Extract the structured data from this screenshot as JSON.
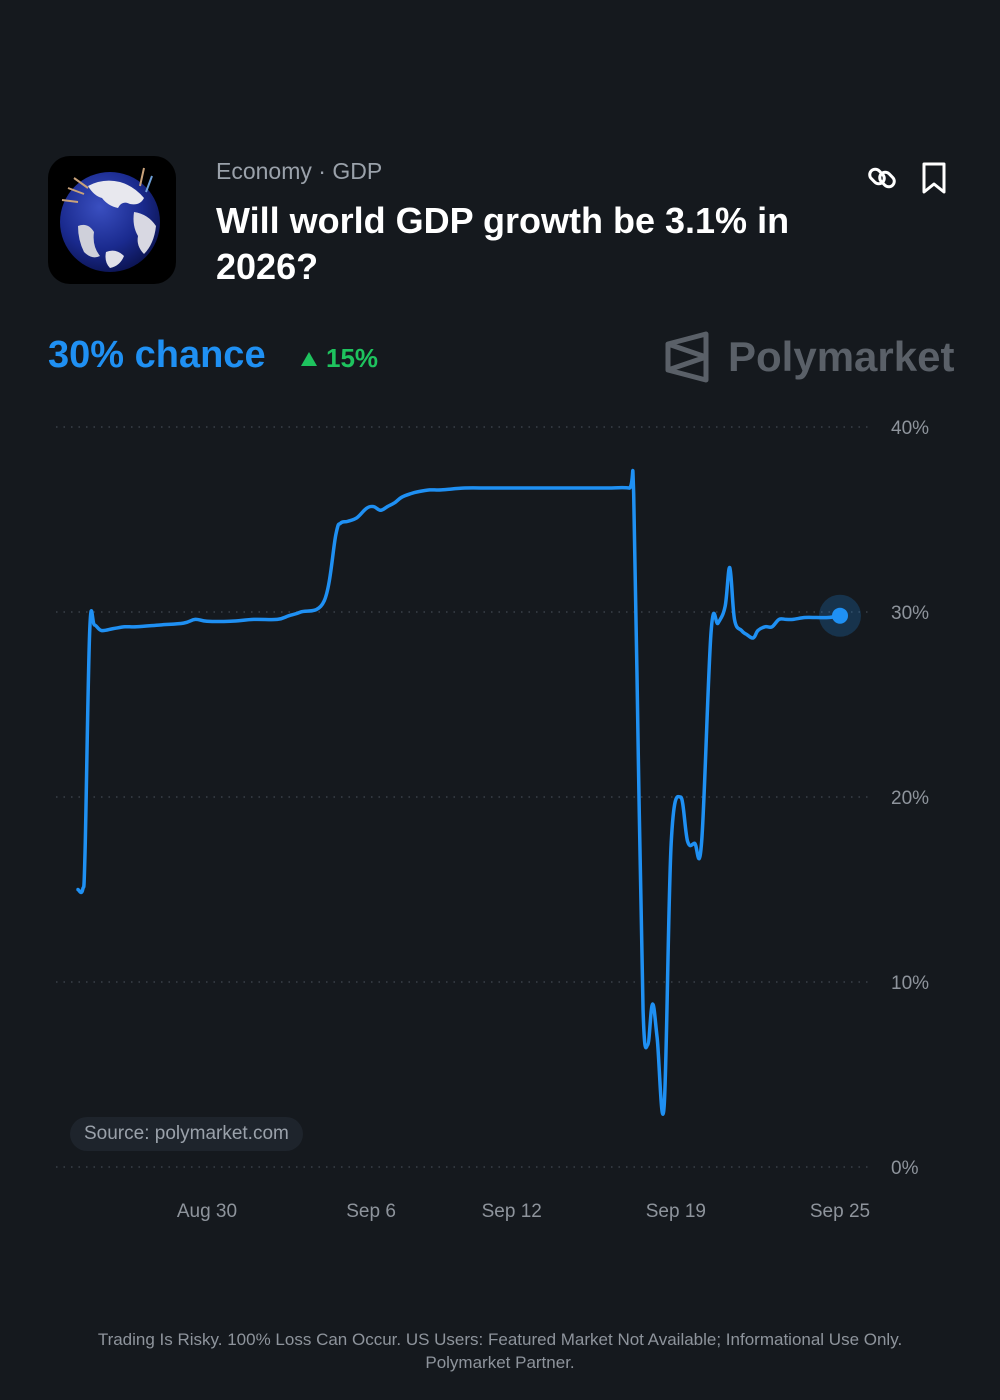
{
  "header": {
    "category": "Economy · GDP",
    "question": "Will world GDP growth be 3.1% in 2026?"
  },
  "icons": {
    "thumbnail": "globe-image",
    "link": "link-icon",
    "bookmark": "bookmark-icon",
    "brand": "polymarket-logo-icon",
    "trend": "triangle-up-icon"
  },
  "summary": {
    "chance_label": "30% chance",
    "change_label": "15%",
    "brand": "Polymarket"
  },
  "colors": {
    "accent": "#1f90f3",
    "positive": "#1ec35e",
    "background": "#15191e"
  },
  "source_label": "Source: polymarket.com",
  "footer": {
    "line1": "Trading Is Risky. 100% Loss Can Occur. US Users: Featured Market Not Available; Informational Use Only.",
    "line2": "Polymarket Partner."
  },
  "chart_data": {
    "type": "line",
    "title": "",
    "xlabel": "",
    "ylabel": "",
    "ylim": [
      0,
      40
    ],
    "y_ticks": [
      0,
      10,
      20,
      30,
      40
    ],
    "y_tick_labels": [
      "0%",
      "10%",
      "20%",
      "30%",
      "40%"
    ],
    "x_tick_labels": [
      "Aug 30",
      "Sep 6",
      "Sep 12",
      "Sep 19",
      "Sep 25"
    ],
    "x_tick_positions": [
      4,
      11,
      17,
      24,
      31
    ],
    "xlim": [
      -1.5,
      31
    ],
    "grid": true,
    "series": [
      {
        "color": "#1f90f3",
        "x": [
          -1.5,
          -1.3,
          -1.2,
          -1.0,
          -0.8,
          -0.5,
          0,
          0.5,
          1,
          2,
          3,
          3.5,
          4,
          5,
          6,
          7,
          7.5,
          8,
          9,
          9.5,
          9.7,
          10.0,
          10.4,
          10.8,
          11.1,
          11.4,
          11.7,
          12.0,
          12.3,
          12.7,
          13.0,
          13.5,
          14,
          15,
          16,
          17,
          18,
          19,
          20,
          21,
          22,
          22.2,
          22.4,
          22.6,
          22.8,
          23.0,
          23.2,
          23.5,
          23.8,
          24.2,
          24.5,
          24.8,
          25.1,
          25.5,
          25.8,
          26.1,
          26.3,
          26.5,
          26.8,
          27.0,
          27.3,
          27.5,
          27.8,
          28.1,
          28.4,
          28.7,
          29.0,
          29.5,
          30,
          30.5,
          31
        ],
        "values": [
          15.0,
          15.0,
          17,
          29.0,
          29.3,
          29.0,
          29.1,
          29.2,
          29.2,
          29.3,
          29.4,
          29.6,
          29.5,
          29.5,
          29.6,
          29.6,
          29.8,
          30.0,
          30.6,
          34.2,
          34.8,
          34.9,
          35.1,
          35.6,
          35.7,
          35.5,
          35.7,
          35.9,
          36.2,
          36.4,
          36.5,
          36.6,
          36.6,
          36.7,
          36.7,
          36.7,
          36.7,
          36.7,
          36.7,
          36.7,
          36.7,
          36.4,
          22.0,
          8.5,
          6.6,
          8.8,
          7.0,
          3.3,
          17.5,
          20.0,
          17.6,
          17.5,
          17.6,
          28.9,
          29.4,
          30.3,
          32.4,
          29.6,
          29.0,
          28.8,
          28.6,
          29.0,
          29.2,
          29.2,
          29.6,
          29.6,
          29.6,
          29.7,
          29.7,
          29.7,
          29.8
        ]
      }
    ]
  }
}
